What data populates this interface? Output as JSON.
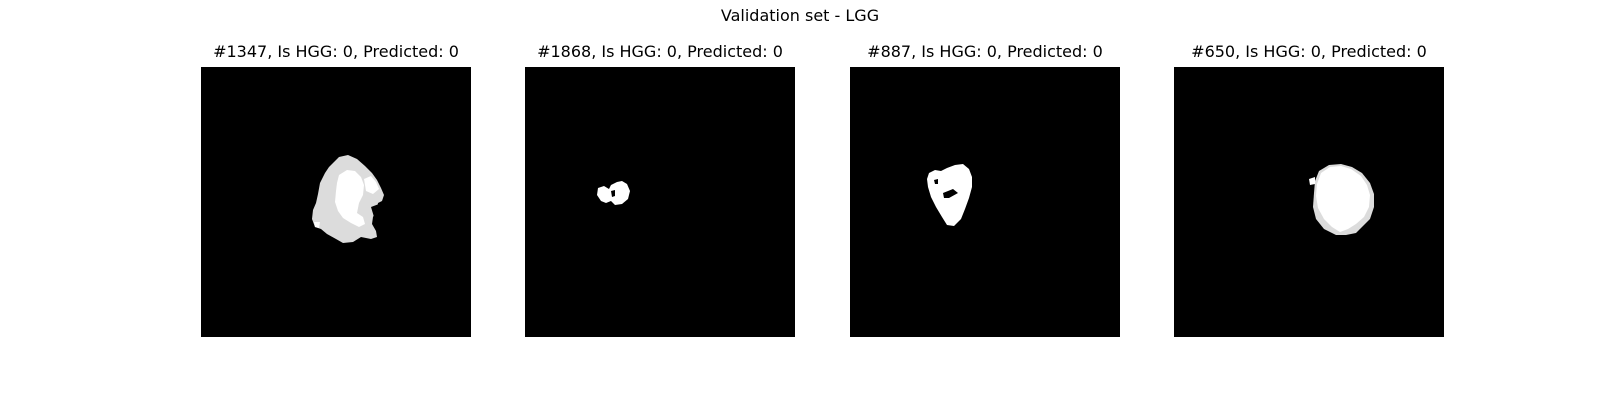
{
  "figure": {
    "title": "Validation set - LGG",
    "panels": [
      {
        "title": "#1347, Is HGG: 0, Predicted: 0"
      },
      {
        "title": "#1868, Is HGG: 0, Predicted: 0"
      },
      {
        "title": "#887, Is HGG: 0, Predicted: 0"
      },
      {
        "title": "#650, Is HGG: 0, Predicted: 0"
      }
    ]
  }
}
